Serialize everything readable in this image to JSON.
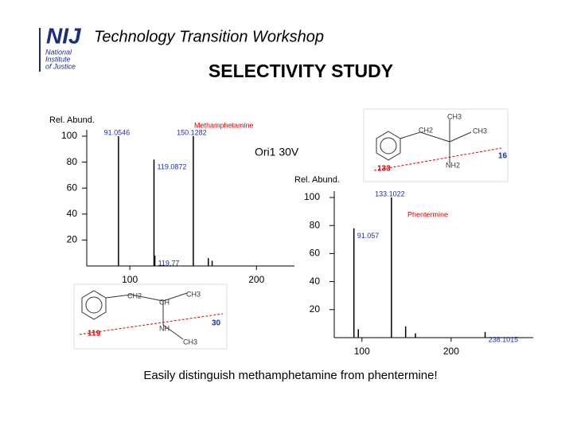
{
  "header": {
    "logo": "NIJ",
    "logo_sub": [
      "National",
      "Institute",
      "of Justice"
    ],
    "title": "Technology Transition Workshop",
    "subtitle": "SELECTIVITY STUDY"
  },
  "footer": "Easily distinguish methamphetamine from phentermine!",
  "annotation": "Ori1 30V",
  "chart_data": [
    {
      "type": "stem",
      "y_label": "Rel. Abund.",
      "compound": "Methamphetamine",
      "color": "#000000",
      "x": [
        91.0546,
        119.0872,
        150.1282,
        119.77,
        162,
        165
      ],
      "values": [
        100,
        82,
        100,
        8,
        6,
        4
      ],
      "peak_labels": [
        {
          "value": 91.0546,
          "label": "91.0546"
        },
        {
          "value": 119.0872,
          "label": "119.0872"
        },
        {
          "value": 150.1282,
          "label": "150.1282"
        },
        {
          "value": 119.77,
          "label": "119.77"
        }
      ],
      "xlim": [
        66,
        230
      ],
      "ylim": [
        0,
        100
      ],
      "xticks": [
        100,
        200
      ],
      "yticks": [
        20,
        40,
        60,
        80,
        100
      ]
    },
    {
      "type": "stem",
      "y_label": "Rel. Abund.",
      "compound": "Phentermine",
      "color": "#000000",
      "x": [
        91.057,
        133.1022,
        238.1015,
        96,
        149,
        160
      ],
      "values": [
        78,
        100,
        4,
        6,
        8,
        3
      ],
      "peak_labels": [
        {
          "value": 91.057,
          "label": "91.057"
        },
        {
          "value": 133.1022,
          "label": "133.1022"
        },
        {
          "value": 238.1015,
          "label": "238.1015"
        }
      ],
      "xlim": [
        69,
        292
      ],
      "ylim": [
        0,
        100
      ],
      "xticks": [
        100,
        200
      ],
      "yticks": [
        20,
        40,
        60,
        80,
        100
      ]
    }
  ],
  "structures": [
    {
      "labels": [
        "CH3",
        "CH2",
        "CH3",
        "NH2"
      ],
      "fragments": [
        "133",
        "16"
      ]
    },
    {
      "labels": [
        "CH2",
        "CH",
        "CH3",
        "NH",
        "CH3"
      ],
      "fragments": [
        "119",
        "30"
      ]
    }
  ]
}
